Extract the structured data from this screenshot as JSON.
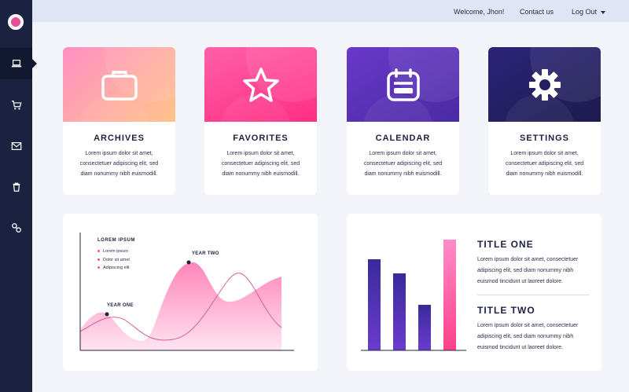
{
  "topbar": {
    "welcome": "Welcome, Jhon!",
    "contact": "Contact us",
    "logout": "Log Out"
  },
  "sidebar": {
    "items": [
      {
        "icon": "laptop-icon",
        "active": true
      },
      {
        "icon": "cart-icon",
        "active": false
      },
      {
        "icon": "mail-icon",
        "active": false
      },
      {
        "icon": "trash-icon",
        "active": false
      },
      {
        "icon": "link-icon",
        "active": false
      }
    ]
  },
  "cards": [
    {
      "title": "ARCHIVES",
      "icon": "briefcase-icon",
      "line1": "Lorem ipsum dolor sit amet,",
      "line2": "consectetuer adipiscing elit, sed",
      "line3": "diam nonummy nibh euismodill."
    },
    {
      "title": "FAVORITES",
      "icon": "star-icon",
      "line1": "Lorem ipsum dolor sit amet,",
      "line2": "consectetuer adipiscing elit, sed",
      "line3": "diam nonummy nibh euismodill."
    },
    {
      "title": "CALENDAR",
      "icon": "calendar-icon",
      "line1": "Lorem ipsum dolor sit amet,",
      "line2": "consectetuer adipiscing elit, sed",
      "line3": "diam nonummy nibh euismodill."
    },
    {
      "title": "SETTINGS",
      "icon": "gear-icon",
      "line1": "Lorem ipsum dolor sit amet,",
      "line2": "consectetuer adipiscing elit, sed",
      "line3": "diam nonummy nibh euismodill."
    }
  ],
  "area_chart": {
    "legend_title": "LOREM IPSUM",
    "legend_items": [
      "Lorem ipsum",
      "Dolor sit amet",
      "Adipiscing elit"
    ],
    "marker_one": "YEAR ONE",
    "marker_two": "YEAR TWO"
  },
  "bar_panel": {
    "title_one": "TITLE ONE",
    "text_one": [
      "Lorem ipsum dolor sit amet, consectetuer",
      "adipiscing elit, sed diam nonummy nibh",
      "euismod tincidunt ut laoreet dolore."
    ],
    "title_two": "TITLE TWO",
    "text_two": [
      "Lorem ipsum dolor sit amet, consectetuer",
      "adipiscing elit, sed diam nonummy nibh",
      "euismod tincidunt ut laoreet dolore."
    ]
  },
  "colors": {
    "sidebar": "#1b2240",
    "accent_pink": "#ff4f97",
    "accent_purple": "#4a2aa4"
  }
}
